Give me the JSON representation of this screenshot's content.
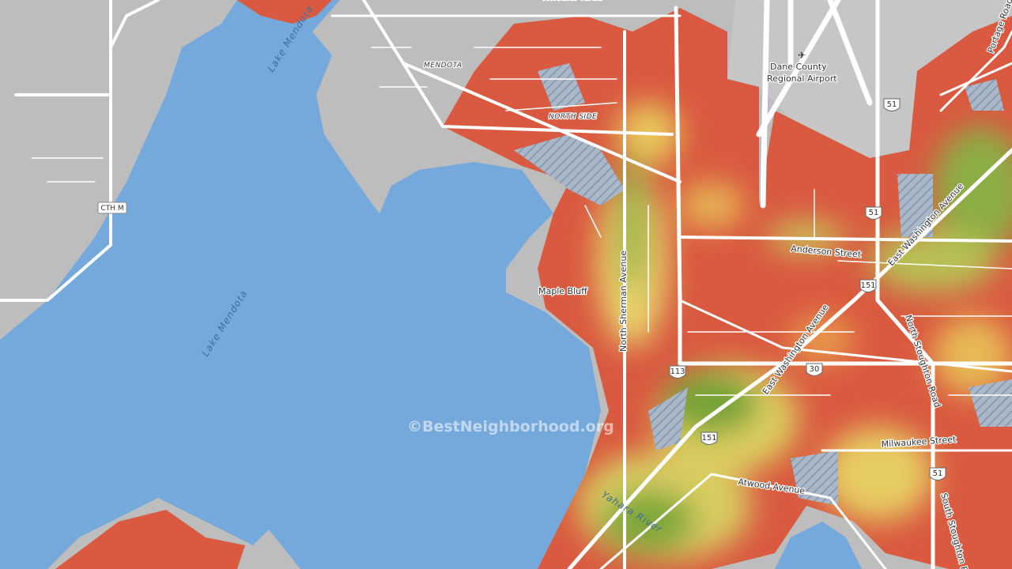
{
  "labels": [
    {
      "text": "Lake Mendota"
    },
    {
      "text": "Lake Mendota"
    },
    {
      "text": "MENDOTA"
    },
    {
      "text": "NORTH SIDE"
    },
    {
      "text": "Dane County"
    },
    {
      "text": "Regional Airport"
    },
    {
      "text": "CTH M"
    },
    {
      "text": "Maple Bluff"
    },
    {
      "text": "North Sherman Avenue"
    },
    {
      "text": "Anderson Street"
    },
    {
      "text": "East Washington Avenue"
    },
    {
      "text": "East Washington Avenue"
    },
    {
      "text": "North Stoughton Road"
    },
    {
      "text": "Milwaukee Street"
    },
    {
      "text": "Atwood Avenue"
    },
    {
      "text": "South Stoughton Road"
    },
    {
      "text": "Yahara River"
    },
    {
      "text": "Portage Road"
    },
    {
      "text": "Wheeler Road"
    }
  ],
  "shields": [
    {
      "text": "51"
    },
    {
      "text": "51"
    },
    {
      "text": "151"
    },
    {
      "text": "113"
    },
    {
      "text": "30"
    },
    {
      "text": "151"
    },
    {
      "text": "51"
    }
  ],
  "watermark": "©BestNeighborhood.org"
}
